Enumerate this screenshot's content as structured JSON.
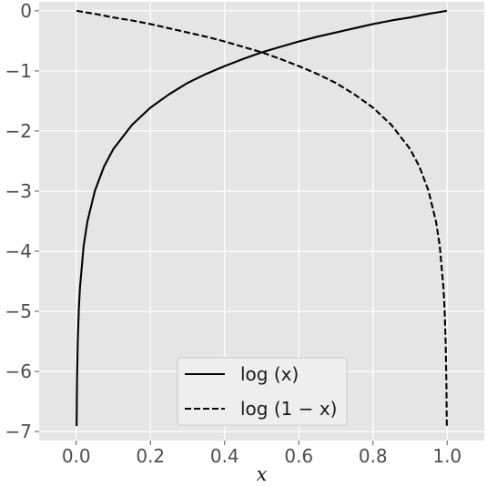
{
  "chart_data": {
    "type": "line",
    "xlabel": "x",
    "ylabel": "",
    "xlim": [
      -0.1,
      1.1
    ],
    "ylim": [
      -7.15,
      0.15
    ],
    "xticks": [
      0.0,
      0.2,
      0.4,
      0.6,
      0.8,
      1.0
    ],
    "xtick_labels": [
      "0.0",
      "0.2",
      "0.4",
      "0.6",
      "0.8",
      "1.0"
    ],
    "yticks": [
      0,
      -1,
      -2,
      -3,
      -4,
      -5,
      -6,
      -7
    ],
    "ytick_labels": [
      "0",
      "−1",
      "−2",
      "−3",
      "−4",
      "−5",
      "−6",
      "−7"
    ],
    "grid": true,
    "legend_position": "bottom-center",
    "series": [
      {
        "name": "log (x)",
        "style": "solid",
        "color": "#000000",
        "x": [
          0.001,
          0.002,
          0.004,
          0.007,
          0.01,
          0.02,
          0.03,
          0.05,
          0.075,
          0.1,
          0.15,
          0.2,
          0.25,
          0.3,
          0.35,
          0.4,
          0.45,
          0.5,
          0.55,
          0.6,
          0.65,
          0.7,
          0.75,
          0.8,
          0.85,
          0.9,
          0.95,
          0.999
        ],
        "y": [
          -6.91,
          -6.21,
          -5.52,
          -4.96,
          -4.61,
          -3.91,
          -3.51,
          -3.0,
          -2.59,
          -2.3,
          -1.9,
          -1.61,
          -1.39,
          -1.2,
          -1.05,
          -0.92,
          -0.8,
          -0.69,
          -0.6,
          -0.51,
          -0.43,
          -0.36,
          -0.29,
          -0.22,
          -0.16,
          -0.11,
          -0.05,
          0.0
        ]
      },
      {
        "name": "log (1 − x)",
        "style": "dashed",
        "color": "#000000",
        "x": [
          0.001,
          0.05,
          0.1,
          0.15,
          0.2,
          0.25,
          0.3,
          0.35,
          0.4,
          0.45,
          0.5,
          0.55,
          0.6,
          0.65,
          0.7,
          0.75,
          0.8,
          0.85,
          0.9,
          0.925,
          0.95,
          0.97,
          0.98,
          0.99,
          0.993,
          0.996,
          0.998,
          0.999
        ],
        "y": [
          0.0,
          -0.05,
          -0.11,
          -0.16,
          -0.22,
          -0.29,
          -0.36,
          -0.43,
          -0.51,
          -0.6,
          -0.69,
          -0.8,
          -0.92,
          -1.05,
          -1.2,
          -1.39,
          -1.61,
          -1.9,
          -2.3,
          -2.59,
          -3.0,
          -3.51,
          -3.91,
          -4.61,
          -4.96,
          -5.52,
          -6.21,
          -6.91
        ]
      }
    ],
    "colors": {
      "plot_background": "#e5e5e5",
      "grid": "#ffffff",
      "tick_text": "#4d4d4d",
      "legend_background": "#eeeeee",
      "legend_border": "#cccccc"
    }
  }
}
